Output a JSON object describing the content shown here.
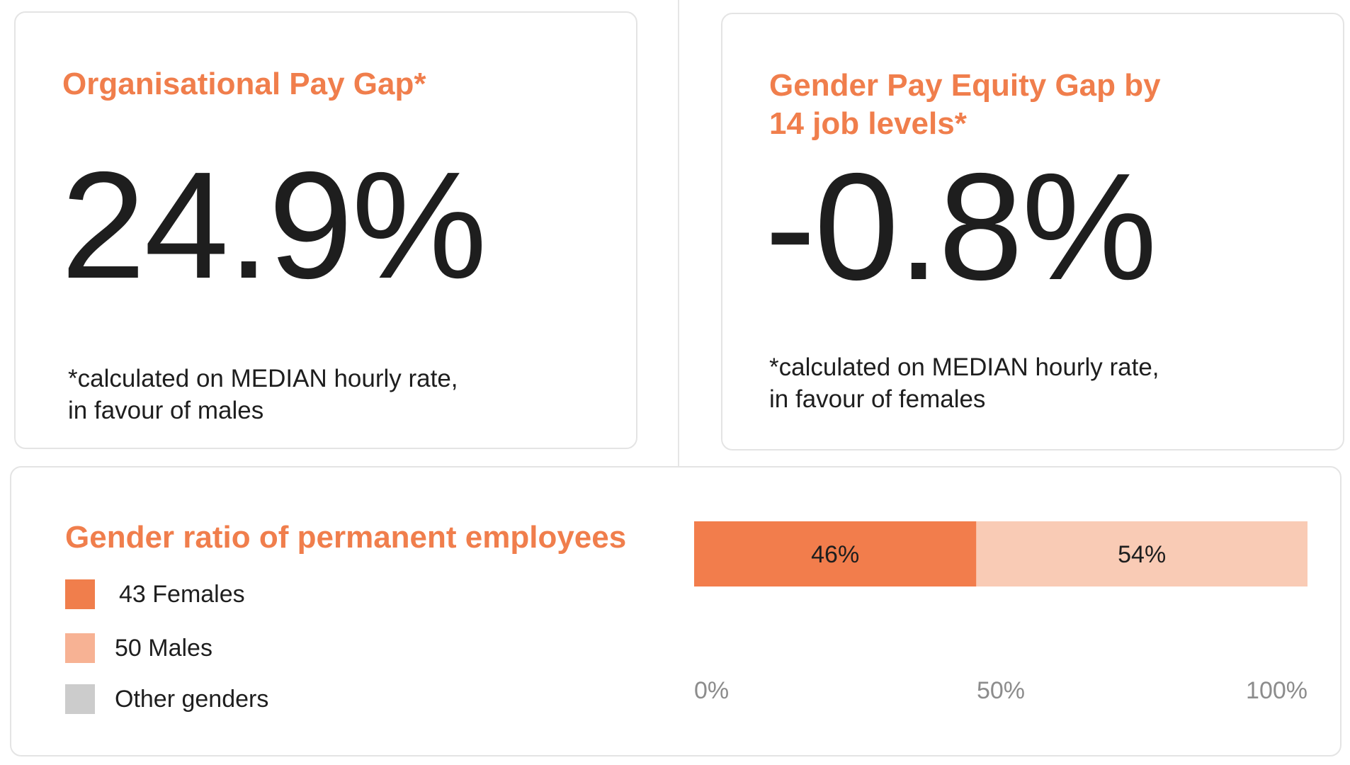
{
  "org_pay_gap": {
    "title": "Organisational Pay Gap*",
    "value": "24.9%",
    "note": "*calculated on MEDIAN hourly rate,\n  in favour of males"
  },
  "equity_gap": {
    "title": "Gender Pay Equity Gap by\n14 job levels*",
    "value": "-0.8%",
    "note": "*calculated on MEDIAN hourly rate,\n  in favour of females"
  },
  "gender_ratio": {
    "title": "Gender ratio of permanent employees",
    "legend": [
      {
        "label": "43 Females",
        "color": "#f07e4c"
      },
      {
        "label": "50 Males",
        "color": "#f7b294"
      },
      {
        "label": "Other genders",
        "color": "#cccccc"
      }
    ]
  },
  "chart_data": {
    "type": "bar",
    "orientation": "horizontal-stacked",
    "title": "Gender ratio of permanent employees",
    "xlim": [
      0,
      100
    ],
    "x_ticks": [
      {
        "value": 0,
        "label": "0%"
      },
      {
        "value": 50,
        "label": "50%"
      },
      {
        "value": 100,
        "label": "100%"
      }
    ],
    "segments": [
      {
        "value": 46,
        "label": "46%",
        "color": "#f27d4c"
      },
      {
        "value": 54,
        "label": "54%",
        "color": "#f9cbb5"
      }
    ]
  }
}
